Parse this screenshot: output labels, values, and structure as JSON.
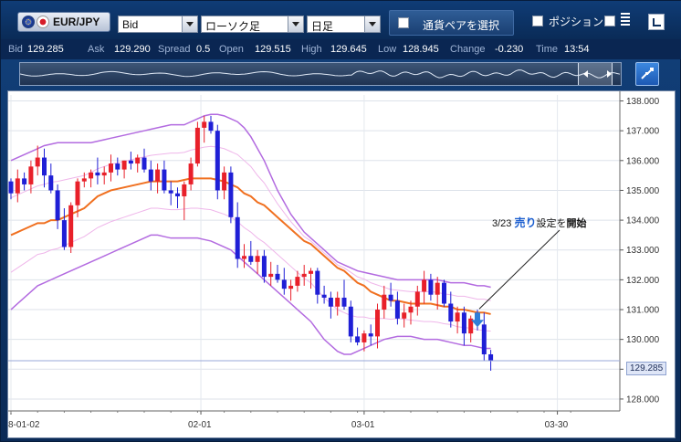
{
  "toolbar": {
    "symbol": "EUR/JPY",
    "price_type": "Bid",
    "chart_type": "ローソク足",
    "timeframe": "日足",
    "pair_select_label": "通貨ペアを選択",
    "position_label": "ポジション"
  },
  "quote": {
    "bid_label": "Bid",
    "bid": "129.285",
    "ask_label": "Ask",
    "ask": "129.290",
    "spread_label": "Spread",
    "spread": "0.5",
    "open_label": "Open",
    "open": "129.515",
    "high_label": "High",
    "high": "129.645",
    "low_label": "Low",
    "low": "128.945",
    "change_label": "Change",
    "change": "-0.230",
    "time_label": "Time",
    "time": "13:54"
  },
  "chart": {
    "y_ticks": [
      "138.000",
      "137.000",
      "136.000",
      "135.000",
      "134.000",
      "133.000",
      "132.000",
      "131.000",
      "130.000",
      "129.000",
      "128.000"
    ],
    "x_ticks": [
      "8-01-02",
      "02-01",
      "03-01",
      "03-30"
    ],
    "current_price": "129.285",
    "annotation": {
      "date": "3/23",
      "sell": "売り",
      "mid": "設定を",
      "open": "開始"
    },
    "colors": {
      "up": "#e8202a",
      "down": "#1f1fd6",
      "ma": "#f07020",
      "bb_outer": "#b36be0",
      "bb_inner": "#efb6ea"
    }
  },
  "chart_data": {
    "type": "candlestick",
    "ylim": [
      127.6,
      138.2
    ],
    "candles": [
      [
        135.3,
        135.4,
        134.7,
        134.9
      ],
      [
        134.9,
        135.7,
        134.6,
        135.4
      ],
      [
        135.4,
        135.6,
        135.0,
        135.2
      ],
      [
        135.2,
        136.0,
        134.9,
        135.8
      ],
      [
        135.8,
        136.5,
        135.5,
        136.1
      ],
      [
        136.1,
        136.4,
        135.1,
        135.5
      ],
      [
        135.5,
        135.9,
        134.9,
        135.0
      ],
      [
        135.0,
        135.2,
        133.7,
        134.0
      ],
      [
        134.0,
        134.4,
        133.0,
        133.1
      ],
      [
        133.1,
        134.6,
        132.9,
        134.5
      ],
      [
        134.5,
        135.4,
        134.1,
        135.3
      ],
      [
        135.3,
        135.6,
        135.1,
        135.4
      ],
      [
        135.4,
        135.7,
        135.1,
        135.6
      ],
      [
        135.6,
        136.1,
        135.2,
        135.5
      ],
      [
        135.5,
        135.8,
        135.2,
        135.6
      ],
      [
        135.6,
        136.2,
        135.3,
        135.9
      ],
      [
        135.9,
        136.1,
        135.5,
        135.7
      ],
      [
        135.7,
        136.0,
        135.4,
        136.0
      ],
      [
        136.0,
        136.3,
        135.7,
        135.9
      ],
      [
        135.9,
        136.2,
        135.6,
        136.1
      ],
      [
        136.1,
        136.4,
        135.6,
        135.7
      ],
      [
        135.7,
        136.0,
        135.0,
        135.3
      ],
      [
        135.3,
        135.9,
        134.9,
        135.7
      ],
      [
        135.7,
        136.0,
        134.9,
        135.0
      ],
      [
        135.0,
        135.3,
        134.5,
        134.9
      ],
      [
        134.9,
        135.1,
        134.4,
        134.8
      ],
      [
        134.8,
        135.3,
        134.0,
        135.2
      ],
      [
        135.2,
        136.1,
        135.0,
        135.9
      ],
      [
        135.9,
        137.3,
        135.8,
        137.1
      ],
      [
        137.1,
        137.5,
        136.6,
        137.3
      ],
      [
        137.3,
        137.5,
        136.9,
        137.0
      ],
      [
        137.0,
        137.2,
        134.7,
        135.0
      ],
      [
        135.0,
        135.8,
        134.7,
        135.6
      ],
      [
        135.6,
        135.8,
        133.9,
        134.1
      ],
      [
        134.1,
        134.6,
        132.4,
        132.7
      ],
      [
        132.7,
        133.2,
        132.4,
        132.8
      ],
      [
        132.8,
        133.3,
        132.5,
        132.6
      ],
      [
        132.6,
        133.0,
        132.2,
        132.8
      ],
      [
        132.8,
        133.0,
        131.9,
        132.1
      ],
      [
        132.1,
        132.6,
        131.8,
        132.2
      ],
      [
        132.2,
        132.5,
        131.9,
        132.0
      ],
      [
        132.0,
        132.4,
        131.5,
        131.7
      ],
      [
        131.7,
        132.0,
        131.3,
        131.8
      ],
      [
        131.8,
        132.3,
        131.6,
        132.1
      ],
      [
        132.1,
        132.5,
        131.8,
        132.2
      ],
      [
        132.2,
        132.4,
        131.7,
        132.3
      ],
      [
        132.3,
        132.4,
        131.2,
        131.5
      ],
      [
        131.5,
        131.8,
        131.2,
        131.4
      ],
      [
        131.4,
        131.6,
        130.7,
        131.1
      ],
      [
        131.1,
        131.6,
        130.8,
        131.4
      ],
      [
        131.4,
        132.0,
        131.0,
        131.1
      ],
      [
        131.1,
        131.3,
        129.9,
        130.1
      ],
      [
        130.1,
        130.4,
        129.8,
        129.9
      ],
      [
        129.9,
        130.3,
        129.6,
        130.2
      ],
      [
        130.2,
        130.5,
        129.8,
        130.1
      ],
      [
        130.1,
        131.2,
        129.7,
        131.0
      ],
      [
        131.0,
        131.8,
        130.7,
        131.5
      ],
      [
        131.5,
        131.9,
        131.1,
        131.3
      ],
      [
        131.3,
        131.6,
        130.5,
        130.7
      ],
      [
        130.7,
        131.2,
        130.4,
        130.9
      ],
      [
        130.9,
        131.3,
        130.5,
        131.1
      ],
      [
        131.1,
        131.8,
        130.8,
        131.6
      ],
      [
        131.6,
        132.3,
        131.2,
        132.0
      ],
      [
        132.0,
        132.2,
        131.3,
        131.5
      ],
      [
        131.5,
        132.1,
        131.0,
        131.9
      ],
      [
        131.9,
        132.0,
        131.1,
        131.2
      ],
      [
        131.2,
        131.6,
        130.4,
        130.6
      ],
      [
        130.6,
        131.1,
        130.2,
        130.9
      ],
      [
        130.9,
        131.1,
        129.8,
        130.2
      ],
      [
        130.2,
        130.8,
        129.9,
        130.7
      ],
      [
        130.7,
        131.0,
        130.3,
        130.5
      ],
      [
        130.5,
        130.9,
        129.3,
        129.5
      ],
      [
        129.5,
        129.65,
        128.95,
        129.285
      ]
    ],
    "moving_average": [
      133.5,
      133.6,
      133.7,
      133.8,
      133.9,
      133.9,
      134.0,
      134.0,
      134.1,
      134.2,
      134.3,
      134.4,
      134.6,
      134.8,
      134.9,
      135.0,
      135.05,
      135.1,
      135.15,
      135.2,
      135.25,
      135.3,
      135.3,
      135.3,
      135.3,
      135.3,
      135.35,
      135.4,
      135.4,
      135.4,
      135.4,
      135.35,
      135.3,
      135.2,
      135.1,
      134.9,
      134.8,
      134.6,
      134.5,
      134.3,
      134.1,
      133.9,
      133.7,
      133.5,
      133.3,
      133.2,
      133.0,
      132.8,
      132.6,
      132.4,
      132.3,
      132.1,
      131.9,
      131.8,
      131.6,
      131.5,
      131.4,
      131.3,
      131.3,
      131.25,
      131.2,
      131.2,
      131.2,
      131.2,
      131.15,
      131.1,
      131.1,
      131.0,
      131.0,
      130.95,
      130.9,
      130.9,
      130.85
    ],
    "bb_upper": [
      136.0,
      136.1,
      136.2,
      136.3,
      136.4,
      136.5,
      136.55,
      136.6,
      136.6,
      136.6,
      136.6,
      136.6,
      136.6,
      136.65,
      136.7,
      136.75,
      136.8,
      136.85,
      136.9,
      136.95,
      137.0,
      137.05,
      137.1,
      137.15,
      137.2,
      137.2,
      137.2,
      137.3,
      137.4,
      137.5,
      137.55,
      137.55,
      137.5,
      137.4,
      137.3,
      137.1,
      136.8,
      136.4,
      136.0,
      135.5,
      135.0,
      134.6,
      134.2,
      133.9,
      133.6,
      133.4,
      133.2,
      133.0,
      132.8,
      132.6,
      132.5,
      132.4,
      132.3,
      132.25,
      132.2,
      132.15,
      132.1,
      132.05,
      132.0,
      132.0,
      132.0,
      132.0,
      132.0,
      132.0,
      132.0,
      131.95,
      131.9,
      131.9,
      131.9,
      131.85,
      131.8,
      131.8,
      131.75
    ],
    "bb_lower": [
      131.0,
      131.2,
      131.4,
      131.6,
      131.8,
      131.9,
      132.0,
      132.1,
      132.2,
      132.3,
      132.4,
      132.5,
      132.6,
      132.7,
      132.8,
      132.9,
      133.0,
      133.1,
      133.2,
      133.3,
      133.4,
      133.5,
      133.5,
      133.45,
      133.4,
      133.4,
      133.4,
      133.4,
      133.4,
      133.35,
      133.3,
      133.2,
      133.1,
      133.0,
      132.8,
      132.6,
      132.4,
      132.2,
      132.0,
      131.8,
      131.6,
      131.4,
      131.2,
      131.0,
      130.8,
      130.6,
      130.3,
      130.0,
      129.8,
      129.6,
      129.5,
      129.5,
      129.6,
      129.7,
      129.8,
      129.9,
      130.0,
      130.05,
      130.1,
      130.1,
      130.1,
      130.05,
      130.0,
      130.0,
      130.0,
      129.95,
      129.9,
      129.85,
      129.8,
      129.8,
      129.75,
      129.7,
      129.7
    ]
  }
}
